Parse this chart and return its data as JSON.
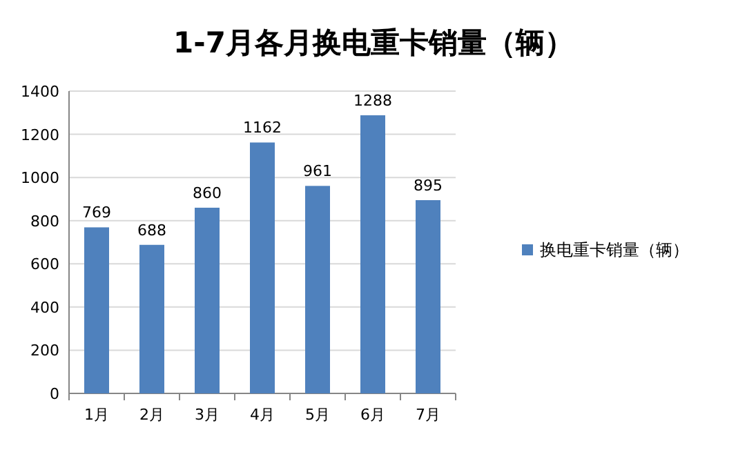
{
  "chart_data": {
    "type": "bar",
    "title": "1-7月各月换电重卡销量（辆）",
    "categories": [
      "1月",
      "2月",
      "3月",
      "4月",
      "5月",
      "6月",
      "7月"
    ],
    "series": [
      {
        "name": "换电重卡销量（辆）",
        "color": "#4f81bd",
        "values": [
          769,
          688,
          860,
          1162,
          961,
          1288,
          895
        ]
      }
    ],
    "ylim": [
      0,
      1400
    ],
    "yticks": [
      0,
      200,
      400,
      600,
      800,
      1000,
      1200,
      1400
    ],
    "grid": "y",
    "legend": "right",
    "data_labels": true
  }
}
